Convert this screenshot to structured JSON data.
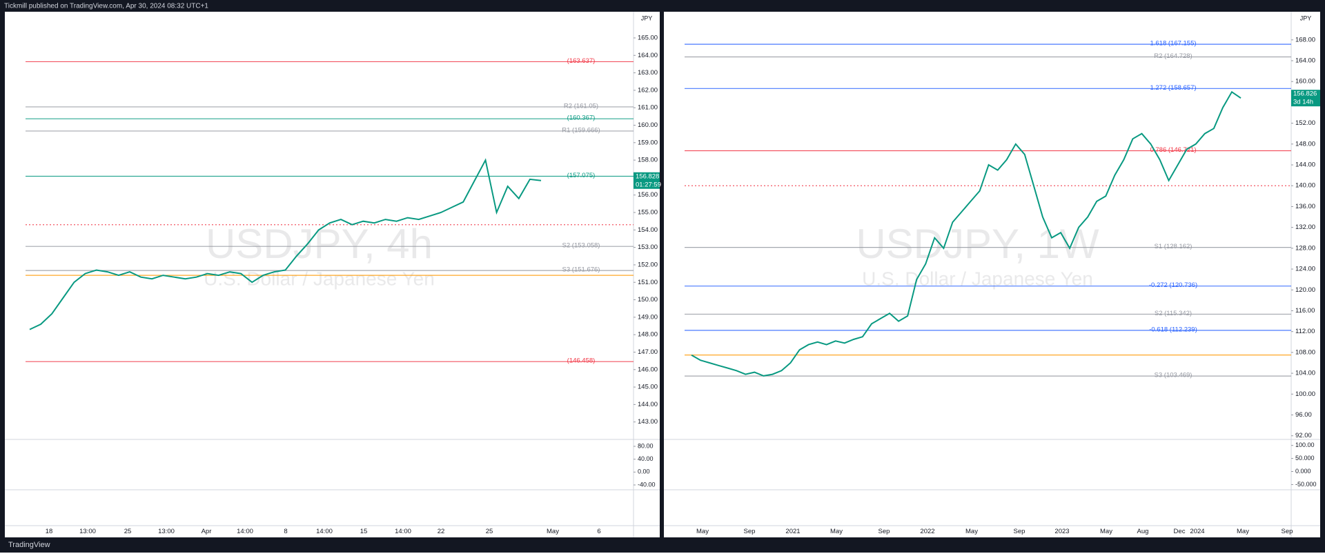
{
  "header": {
    "text": "Tickmill published on TradingView.com, Apr 30, 2024 08:32 UTC+1"
  },
  "footer": {
    "brand": "TradingView"
  },
  "panels": [
    {
      "currency": "JPY",
      "symbol": "USDJPY, 4h",
      "description": "U.S. Dollar / Japanese Yen",
      "ylim": [
        142.0,
        166.5
      ],
      "price_ticks": [
        {
          "value": 143,
          "label": "143.00"
        },
        {
          "value": 144,
          "label": "144.00"
        },
        {
          "value": 145,
          "label": "145.00"
        },
        {
          "value": 146,
          "label": "146.00"
        },
        {
          "value": 147,
          "label": "147.00"
        },
        {
          "value": 148,
          "label": "148.00"
        },
        {
          "value": 149,
          "label": "149.00"
        },
        {
          "value": 150,
          "label": "150.00"
        },
        {
          "value": 151,
          "label": "151.00"
        },
        {
          "value": 152,
          "label": "152.00"
        },
        {
          "value": 153,
          "label": "153.00"
        },
        {
          "value": 154,
          "label": "154.00"
        },
        {
          "value": 155,
          "label": "155.00"
        },
        {
          "value": 156,
          "label": "156.00"
        },
        {
          "value": 157,
          "label": "157.00"
        },
        {
          "value": 158,
          "label": "158.00"
        },
        {
          "value": 159,
          "label": "159.00"
        },
        {
          "value": 160,
          "label": "160.00"
        },
        {
          "value": 161,
          "label": "161.00"
        },
        {
          "value": 162,
          "label": "162.00"
        },
        {
          "value": 163,
          "label": "163.00"
        },
        {
          "value": 164,
          "label": "164.00"
        },
        {
          "value": 165,
          "label": "165.00"
        }
      ],
      "last_price": {
        "value": 156.828,
        "label": "156.828",
        "countdown": "01:27:59"
      },
      "levels": [
        {
          "label": "(163.637)",
          "value": 163.637,
          "color": "#f23645"
        },
        {
          "label": "R2 (161.05)",
          "value": 161.05,
          "color": "#9598a1"
        },
        {
          "label": "(160.367)",
          "value": 160.367,
          "color": "#089981"
        },
        {
          "label": "R1 (159.666)",
          "value": 159.666,
          "color": "#9598a1"
        },
        {
          "label": "(157.075)",
          "value": 157.075,
          "color": "#089981"
        },
        {
          "label": "S2 (153.058)",
          "value": 153.058,
          "color": "#9598a1"
        },
        {
          "label": "S3 (151.676)",
          "value": 151.676,
          "color": "#9598a1"
        },
        {
          "label": "(146.458)",
          "value": 146.458,
          "color": "#f23645"
        },
        {
          "value": 154.3,
          "color": "#f23645",
          "style": "dotted"
        },
        {
          "value": 151.4,
          "color": "#ff9800"
        }
      ],
      "time_labels": [
        "18",
        "13:00",
        "25",
        "13:00",
        "Apr",
        "14:00",
        "8",
        "14:00",
        "15",
        "14:00",
        "22",
        "25",
        "May",
        "6"
      ],
      "closes": [
        148.3,
        148.6,
        149.2,
        150.1,
        151.0,
        151.5,
        151.7,
        151.6,
        151.4,
        151.6,
        151.3,
        151.2,
        151.4,
        151.3,
        151.2,
        151.3,
        151.5,
        151.4,
        151.6,
        151.5,
        151.0,
        151.4,
        151.6,
        151.7,
        152.5,
        153.2,
        154.0,
        154.4,
        154.6,
        154.3,
        154.5,
        154.4,
        154.6,
        154.5,
        154.7,
        154.6,
        154.8,
        155.0,
        155.3,
        155.6,
        156.8,
        158.0,
        155.0,
        156.5,
        155.8,
        156.9,
        156.828
      ],
      "osc_ticks": [
        {
          "value": 80,
          "label": "80.00"
        },
        {
          "value": 40,
          "label": "40.00"
        },
        {
          "value": 0,
          "label": "0.00"
        },
        {
          "value": -40,
          "label": "-40.00"
        }
      ],
      "osc_lim": [
        -55,
        95
      ]
    },
    {
      "currency": "JPY",
      "symbol": "USDJPY, 1W",
      "description": "U.S. Dollar / Japanese Yen",
      "ylim": [
        91.3,
        173.4
      ],
      "price_ticks": [
        {
          "value": 92,
          "label": "92.00"
        },
        {
          "value": 96,
          "label": "96.00"
        },
        {
          "value": 100,
          "label": "100.00"
        },
        {
          "value": 104,
          "label": "104.00"
        },
        {
          "value": 108,
          "label": "108.00"
        },
        {
          "value": 112,
          "label": "112.00"
        },
        {
          "value": 116,
          "label": "116.00"
        },
        {
          "value": 120,
          "label": "120.00"
        },
        {
          "value": 124,
          "label": "124.00"
        },
        {
          "value": 128,
          "label": "128.00"
        },
        {
          "value": 132,
          "label": "132.00"
        },
        {
          "value": 136,
          "label": "136.00"
        },
        {
          "value": 140,
          "label": "140.00"
        },
        {
          "value": 144,
          "label": "144.00"
        },
        {
          "value": 148,
          "label": "148.00"
        },
        {
          "value": 152,
          "label": "152.00"
        },
        {
          "value": 156,
          "label": "156.00"
        },
        {
          "value": 160,
          "label": "160.00"
        },
        {
          "value": 164,
          "label": "164.00"
        },
        {
          "value": 168,
          "label": "168.00"
        }
      ],
      "last_price": {
        "value": 156.826,
        "label": "156.826",
        "countdown": "3d 14h"
      },
      "levels": [
        {
          "label": "1.618 (167.155)",
          "value": 167.155,
          "color": "#2962ff"
        },
        {
          "label": "R2 (164.728)",
          "value": 164.728,
          "color": "#9598a1"
        },
        {
          "label": "1.272 (158.657)",
          "value": 158.657,
          "color": "#2962ff"
        },
        {
          "label": "0.786 (146.721)",
          "value": 146.721,
          "color": "#f23645"
        },
        {
          "label": "S1 (128.162)",
          "value": 128.162,
          "color": "#9598a1"
        },
        {
          "label": "-0.272 (120.736)",
          "value": 120.736,
          "color": "#2962ff"
        },
        {
          "label": "S2 (115.342)",
          "value": 115.342,
          "color": "#9598a1"
        },
        {
          "label": "-0.618 (112.239)",
          "value": 112.239,
          "color": "#2962ff"
        },
        {
          "label": "S3 (103.469)",
          "value": 103.469,
          "color": "#9598a1"
        },
        {
          "value": 140.0,
          "color": "#f23645",
          "style": "dotted"
        },
        {
          "value": 107.5,
          "color": "#ff9800"
        }
      ],
      "time_labels": [
        "May",
        "Sep",
        "2021",
        "May",
        "Sep",
        "2022",
        "May",
        "Sep",
        "2023",
        "May",
        "Aug",
        "Dec",
        "2024",
        "May",
        "Sep"
      ],
      "closes": [
        107.5,
        106.5,
        106.0,
        105.5,
        105.0,
        104.5,
        103.8,
        104.2,
        103.5,
        103.8,
        104.5,
        106,
        108.5,
        109.5,
        110,
        109.5,
        110.2,
        109.8,
        110.5,
        111,
        113.5,
        114.5,
        115.5,
        114,
        115,
        122,
        125,
        130,
        128,
        133,
        135,
        137,
        139,
        144,
        143,
        145,
        148,
        146,
        140,
        134,
        130,
        131,
        128,
        132,
        134,
        137,
        138,
        142,
        145,
        149,
        150,
        148,
        145,
        141,
        144,
        147,
        148,
        150,
        151,
        155,
        158,
        156.826
      ],
      "osc_ticks": [
        {
          "value": 100,
          "label": "100.00"
        },
        {
          "value": 50,
          "label": "50.000"
        },
        {
          "value": 0,
          "label": "0.000"
        },
        {
          "value": -50,
          "label": "-50.000"
        }
      ],
      "osc_lim": [
        -70,
        115
      ]
    }
  ]
}
